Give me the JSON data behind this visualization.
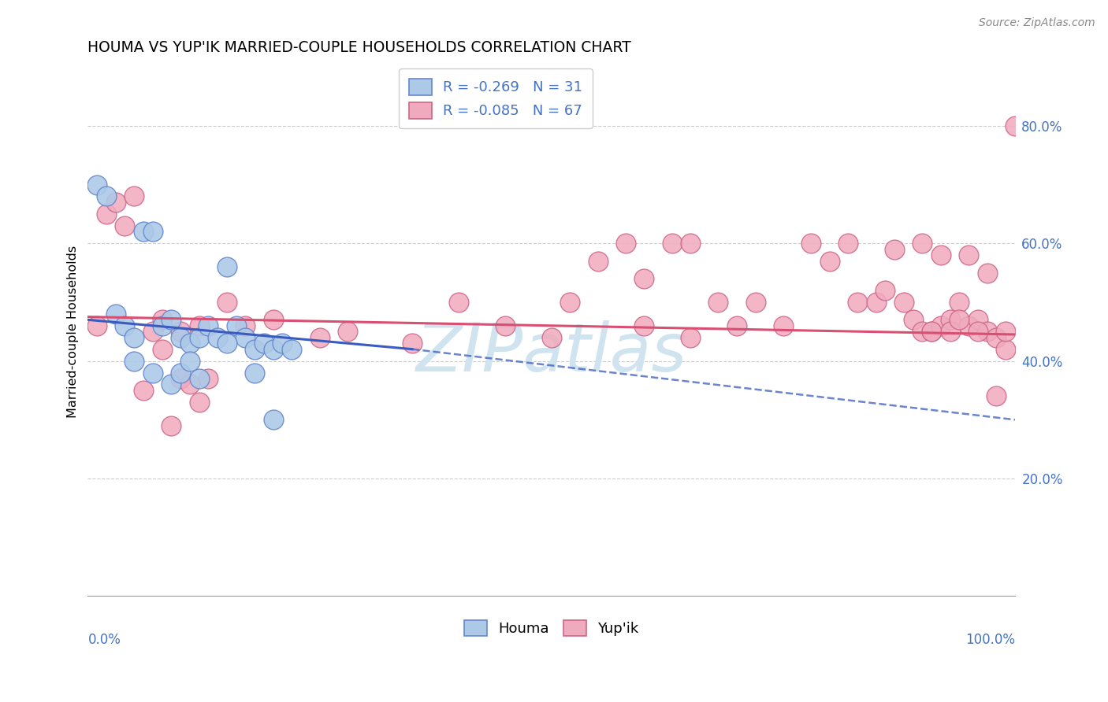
{
  "title": "HOUMA VS YUP'IK MARRIED-COUPLE HOUSEHOLDS CORRELATION CHART",
  "source": "Source: ZipAtlas.com",
  "ylabel": "Married-couple Households",
  "legend_houma": "Houma",
  "legend_yupik": "Yup'ik",
  "legend_r_houma": "R = -0.269",
  "legend_n_houma": "N = 31",
  "legend_r_yupik": "R = -0.085",
  "legend_n_yupik": "N = 67",
  "houma_color": "#adc9e8",
  "yupik_color": "#f0aabe",
  "line_houma_color": "#3a5bbf",
  "line_yupik_color": "#d94f72",
  "watermark": "ZIPatlas",
  "watermark_color": "#d0e4f0",
  "houma_x": [
    1,
    2,
    3,
    4,
    5,
    6,
    7,
    8,
    9,
    10,
    11,
    12,
    13,
    14,
    15,
    16,
    17,
    18,
    19,
    20,
    21,
    22,
    5,
    7,
    9,
    10,
    11,
    12,
    15,
    18,
    20
  ],
  "houma_y": [
    70,
    68,
    48,
    46,
    44,
    62,
    62,
    46,
    47,
    44,
    43,
    44,
    46,
    44,
    56,
    46,
    44,
    42,
    43,
    42,
    43,
    42,
    40,
    38,
    36,
    38,
    40,
    37,
    43,
    38,
    30
  ],
  "yupik_x": [
    1,
    2,
    3,
    4,
    5,
    6,
    7,
    8,
    9,
    10,
    11,
    12,
    13,
    15,
    17,
    20,
    25,
    28,
    35,
    40,
    45,
    50,
    52,
    55,
    58,
    60,
    63,
    65,
    68,
    70,
    72,
    75,
    78,
    80,
    82,
    83,
    85,
    86,
    88,
    89,
    90,
    91,
    92,
    93,
    94,
    95,
    96,
    97,
    98,
    99,
    100,
    8,
    10,
    12,
    60,
    65,
    87,
    90,
    91,
    92,
    93,
    94,
    95,
    96,
    97,
    98,
    99
  ],
  "yupik_y": [
    46,
    65,
    67,
    63,
    68,
    35,
    45,
    47,
    29,
    37,
    36,
    46,
    37,
    50,
    46,
    47,
    44,
    45,
    43,
    50,
    46,
    44,
    50,
    57,
    60,
    54,
    60,
    44,
    50,
    46,
    50,
    46,
    60,
    57,
    60,
    50,
    50,
    52,
    50,
    47,
    45,
    45,
    46,
    47,
    50,
    46,
    47,
    45,
    44,
    42,
    80,
    42,
    45,
    33,
    46,
    60,
    59,
    60,
    45,
    58,
    45,
    47,
    58,
    45,
    55,
    34,
    45
  ],
  "xlim": [
    0,
    100
  ],
  "ylim": [
    0,
    90
  ],
  "yticks": [
    20,
    40,
    60,
    80
  ],
  "ytick_labels": [
    "20.0%",
    "40.0%",
    "60.0%",
    "80.0%"
  ],
  "xtick_left": "0.0%",
  "xtick_right": "100.0%",
  "background_color": "#ffffff",
  "grid_color": "#cccccc",
  "houma_line_x0": 0,
  "houma_line_x1": 35,
  "houma_line_y0": 47,
  "houma_line_y1": 42,
  "houma_dash_x0": 35,
  "houma_dash_x1": 100,
  "houma_dash_y0": 42,
  "houma_dash_y1": 30,
  "yupik_line_x0": 0,
  "yupik_line_x1": 100,
  "yupik_line_y0": 47.5,
  "yupik_line_y1": 44.5
}
